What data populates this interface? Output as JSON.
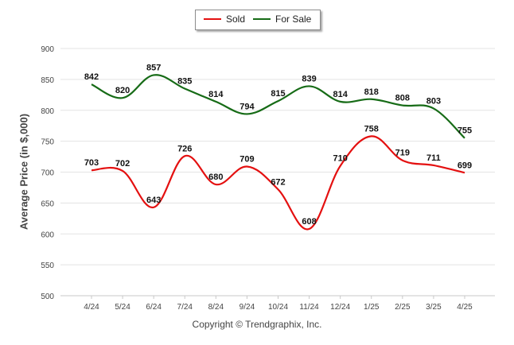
{
  "legend": {
    "items": [
      {
        "label": "Sold",
        "color": "#e41010"
      },
      {
        "label": "For Sale",
        "color": "#166b16"
      }
    ]
  },
  "footer": {
    "copyright": "Copyright © Trendgraphix, Inc."
  },
  "chart_data": {
    "type": "line",
    "ylabel": "Average Price (in $,000)",
    "xlabel": "",
    "ylim": [
      500,
      900
    ],
    "yticks": [
      500,
      550,
      600,
      650,
      700,
      750,
      800,
      850,
      900
    ],
    "categories": [
      "4/24",
      "5/24",
      "6/24",
      "7/24",
      "8/24",
      "9/24",
      "10/24",
      "11/24",
      "12/24",
      "1/25",
      "2/25",
      "3/25",
      "4/25"
    ],
    "grid": true,
    "legend_position": "top-center",
    "series": [
      {
        "name": "Sold",
        "color": "#e41010",
        "values": [
          703,
          702,
          643,
          726,
          680,
          709,
          672,
          608,
          710,
          758,
          719,
          711,
          699
        ]
      },
      {
        "name": "For Sale",
        "color": "#166b16",
        "values": [
          842,
          820,
          857,
          835,
          814,
          794,
          815,
          839,
          814,
          818,
          808,
          803,
          755
        ]
      }
    ]
  }
}
